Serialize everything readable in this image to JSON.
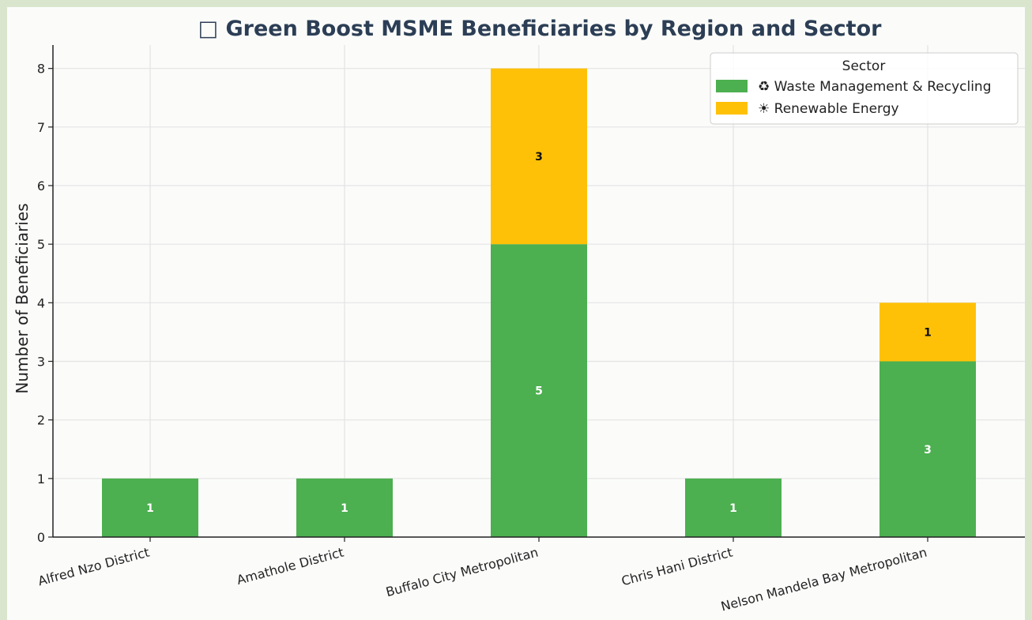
{
  "chart_data": {
    "type": "bar",
    "stacked": true,
    "title": "□ Green Boost MSME Beneficiaries by Region and Sector",
    "xlabel": "",
    "ylabel": "Number of Beneficiaries",
    "categories": [
      "Alfred Nzo District",
      "Amathole District",
      "Buffalo City Metropolitan",
      "Chris Hani District",
      "Nelson Mandela Bay Metropolitan"
    ],
    "series": [
      {
        "name": "♻ Waste Management & Recycling",
        "values": [
          1,
          1,
          5,
          1,
          3
        ],
        "color": "#4caf50",
        "label_color": "#ffffff"
      },
      {
        "name": "☀ Renewable Energy",
        "values": [
          0,
          0,
          3,
          0,
          1
        ],
        "color": "#ffc107",
        "label_color": "#111111"
      }
    ],
    "ylim": [
      0,
      8.4
    ],
    "yticks": [
      0,
      1,
      2,
      3,
      4,
      5,
      6,
      7,
      8
    ],
    "grid": true,
    "legend": {
      "title": "Sector",
      "placement": "top-right"
    }
  }
}
